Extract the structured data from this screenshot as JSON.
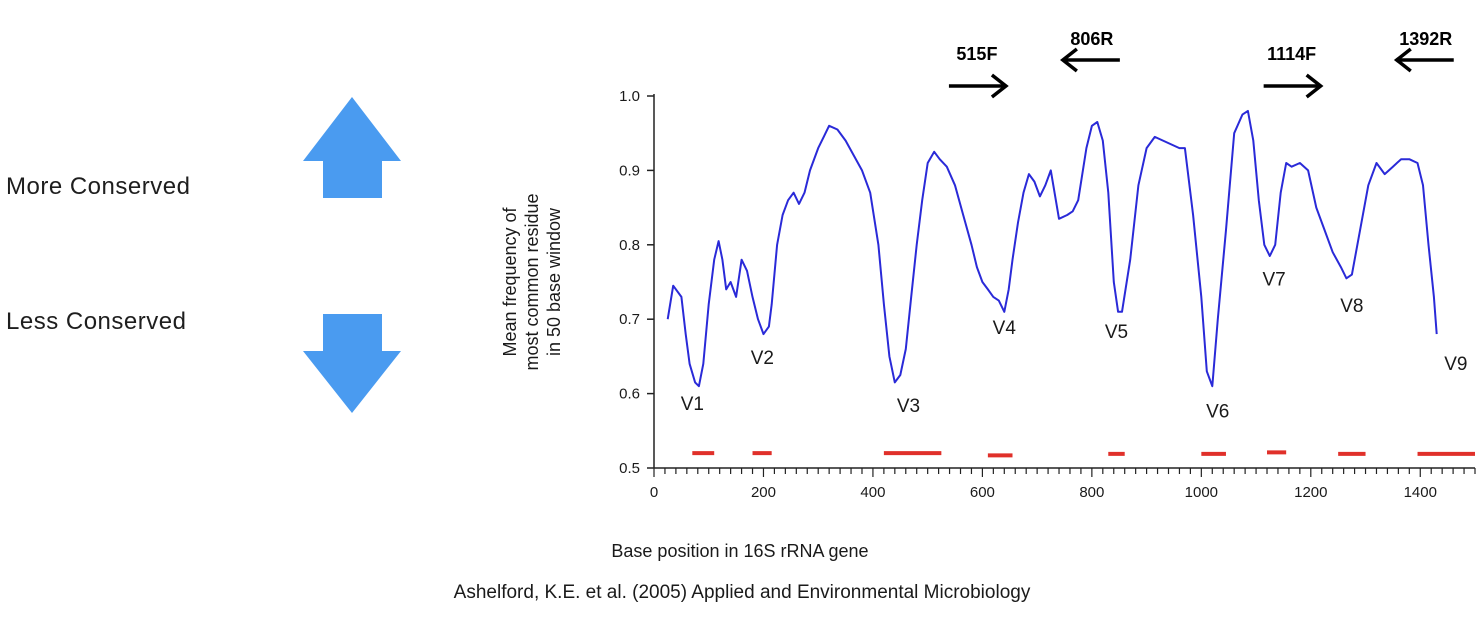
{
  "legend": {
    "more_label": "More Conserved",
    "less_label": "Less Conserved",
    "arrow_color": "#4a9bf0"
  },
  "chart_data": {
    "type": "line",
    "xlabel": "Base position in 16S rRNA gene",
    "ylabel_lines": [
      "Mean frequency of",
      "most common residue",
      "in 50 base window"
    ],
    "xlim": [
      0,
      1500
    ],
    "ylim": [
      0.5,
      1.0
    ],
    "x_ticks": [
      0,
      200,
      400,
      600,
      800,
      1000,
      1200,
      1400
    ],
    "y_ticks": [
      0.5,
      0.6,
      0.7,
      0.8,
      0.9,
      1.0
    ],
    "y_tick_labels": [
      "0.5",
      "0.6",
      "0.7",
      "0.8",
      "0.9",
      "1.0"
    ],
    "line_color": "#2a2ad8",
    "series": [
      {
        "x": [
          25,
          35,
          50,
          58,
          65,
          75,
          82,
          90,
          100,
          110,
          118,
          125,
          132,
          140,
          150,
          160,
          170,
          180,
          190,
          200,
          210,
          215,
          225,
          235,
          245,
          255,
          265,
          275,
          285,
          300,
          310,
          320,
          335,
          350,
          365,
          380,
          395,
          410,
          420,
          430,
          440,
          450,
          460,
          470,
          480,
          490,
          500,
          512,
          522,
          535,
          550,
          565,
          580,
          590,
          600,
          610,
          620,
          630,
          640,
          648,
          655,
          665,
          675,
          685,
          695,
          705,
          715,
          725,
          740,
          755,
          765,
          775,
          790,
          800,
          810,
          820,
          830,
          840,
          848,
          855,
          870,
          885,
          900,
          915,
          930,
          945,
          960,
          970,
          985,
          1000,
          1010,
          1020,
          1030,
          1045,
          1060,
          1075,
          1085,
          1095,
          1105,
          1115,
          1125,
          1135,
          1145,
          1155,
          1165,
          1180,
          1195,
          1210,
          1225,
          1240,
          1255,
          1265,
          1275,
          1290,
          1305,
          1320,
          1335,
          1350,
          1365,
          1380,
          1395,
          1405,
          1415,
          1425,
          1430
        ],
        "y": [
          0.7,
          0.745,
          0.73,
          0.68,
          0.64,
          0.615,
          0.61,
          0.64,
          0.72,
          0.78,
          0.805,
          0.78,
          0.74,
          0.75,
          0.73,
          0.78,
          0.765,
          0.73,
          0.7,
          0.68,
          0.69,
          0.72,
          0.8,
          0.84,
          0.86,
          0.87,
          0.855,
          0.87,
          0.9,
          0.93,
          0.945,
          0.96,
          0.955,
          0.94,
          0.92,
          0.9,
          0.87,
          0.8,
          0.72,
          0.65,
          0.615,
          0.625,
          0.66,
          0.73,
          0.8,
          0.86,
          0.91,
          0.925,
          0.915,
          0.905,
          0.88,
          0.84,
          0.8,
          0.77,
          0.75,
          0.74,
          0.73,
          0.725,
          0.71,
          0.74,
          0.78,
          0.83,
          0.87,
          0.895,
          0.885,
          0.865,
          0.88,
          0.9,
          0.835,
          0.84,
          0.845,
          0.86,
          0.93,
          0.96,
          0.965,
          0.94,
          0.87,
          0.75,
          0.71,
          0.71,
          0.78,
          0.88,
          0.93,
          0.945,
          0.94,
          0.935,
          0.93,
          0.93,
          0.84,
          0.73,
          0.63,
          0.61,
          0.7,
          0.82,
          0.95,
          0.975,
          0.98,
          0.94,
          0.86,
          0.8,
          0.785,
          0.8,
          0.87,
          0.91,
          0.905,
          0.91,
          0.9,
          0.85,
          0.82,
          0.79,
          0.77,
          0.755,
          0.76,
          0.82,
          0.88,
          0.91,
          0.895,
          0.905,
          0.915,
          0.915,
          0.91,
          0.88,
          0.8,
          0.73,
          0.68
        ]
      }
    ],
    "region_labels": [
      {
        "text": "V1",
        "x": 70,
        "y": 0.578
      },
      {
        "text": "V2",
        "x": 198,
        "y": 0.64
      },
      {
        "text": "V3",
        "x": 465,
        "y": 0.575
      },
      {
        "text": "V4",
        "x": 640,
        "y": 0.68
      },
      {
        "text": "V5",
        "x": 845,
        "y": 0.675
      },
      {
        "text": "V6",
        "x": 1030,
        "y": 0.568
      },
      {
        "text": "V7",
        "x": 1133,
        "y": 0.745
      },
      {
        "text": "V8",
        "x": 1275,
        "y": 0.71
      },
      {
        "text": "V9",
        "x": 1465,
        "y": 0.632
      }
    ],
    "red_segments": [
      {
        "x1": 70,
        "x2": 110,
        "y": 0.52
      },
      {
        "x1": 180,
        "x2": 215,
        "y": 0.52
      },
      {
        "x1": 420,
        "x2": 525,
        "y": 0.52
      },
      {
        "x1": 610,
        "x2": 655,
        "y": 0.517
      },
      {
        "x1": 830,
        "x2": 860,
        "y": 0.519
      },
      {
        "x1": 1000,
        "x2": 1045,
        "y": 0.519
      },
      {
        "x1": 1120,
        "x2": 1155,
        "y": 0.521
      },
      {
        "x1": 1250,
        "x2": 1300,
        "y": 0.519
      },
      {
        "x1": 1395,
        "x2": 1500,
        "y": 0.519
      }
    ],
    "red_color": "#e0302a",
    "primers": [
      {
        "label": "515F",
        "direction": "right",
        "x": 590
      },
      {
        "label": "806R",
        "direction": "left",
        "x": 800
      },
      {
        "label": "1114F",
        "direction": "right",
        "x": 1165
      },
      {
        "label": "1392R",
        "direction": "left",
        "x": 1410
      }
    ],
    "citation": "Ashelford, K.E. et al. (2005)  Applied and Environmental Microbiology"
  }
}
